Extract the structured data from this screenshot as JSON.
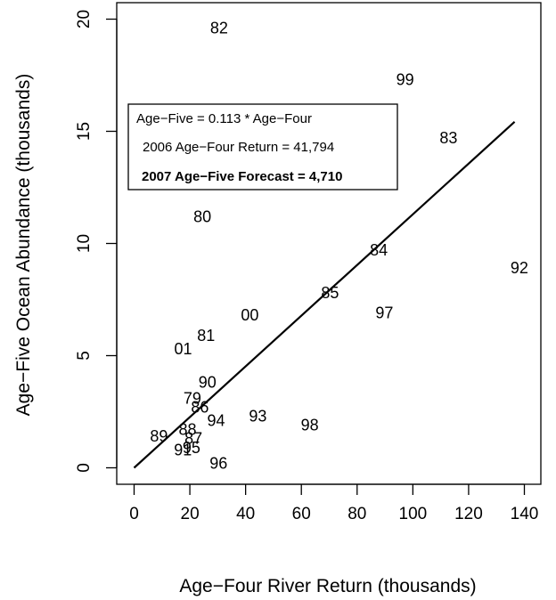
{
  "chart_data": {
    "type": "scatter",
    "xlabel": "Age−Four River Return (thousands)",
    "ylabel": "Age−Five Ocean Abundance (thousands)",
    "xlim": [
      0,
      140
    ],
    "ylim": [
      0,
      20
    ],
    "x_ticks": [
      "0",
      "20",
      "40",
      "60",
      "80",
      "100",
      "120",
      "140"
    ],
    "y_ticks": [
      "0",
      "5",
      "10",
      "15",
      "20"
    ],
    "x_tick_values": [
      0,
      20,
      40,
      60,
      80,
      100,
      120,
      140
    ],
    "y_tick_values": [
      0,
      5,
      10,
      15,
      20
    ],
    "grid": false,
    "marker": "year-label",
    "points": [
      {
        "label": "82",
        "x": 30.5,
        "y": 19.6
      },
      {
        "label": "99",
        "x": 97.2,
        "y": 17.3
      },
      {
        "label": "83",
        "x": 112.8,
        "y": 14.7
      },
      {
        "label": "80",
        "x": 24.5,
        "y": 11.2
      },
      {
        "label": "84",
        "x": 87.8,
        "y": 9.7
      },
      {
        "label": "92",
        "x": 138.2,
        "y": 8.9
      },
      {
        "label": "85",
        "x": 70.3,
        "y": 7.8
      },
      {
        "label": "00",
        "x": 41.5,
        "y": 6.8
      },
      {
        "label": "97",
        "x": 89.8,
        "y": 6.9
      },
      {
        "label": "81",
        "x": 25.8,
        "y": 5.9
      },
      {
        "label": "01",
        "x": 17.6,
        "y": 5.3
      },
      {
        "label": "90",
        "x": 26.3,
        "y": 3.8
      },
      {
        "label": "79",
        "x": 20.9,
        "y": 3.1
      },
      {
        "label": "86",
        "x": 23.6,
        "y": 2.7
      },
      {
        "label": "94",
        "x": 29.4,
        "y": 2.1
      },
      {
        "label": "93",
        "x": 44.4,
        "y": 2.3
      },
      {
        "label": "98",
        "x": 63.0,
        "y": 1.9
      },
      {
        "label": "89",
        "x": 8.9,
        "y": 1.4
      },
      {
        "label": "88",
        "x": 19.2,
        "y": 1.7
      },
      {
        "label": "87",
        "x": 21.3,
        "y": 1.3
      },
      {
        "label": "91",
        "x": 17.5,
        "y": 0.8
      },
      {
        "label": "95",
        "x": 20.6,
        "y": 0.9
      },
      {
        "label": "96",
        "x": 30.3,
        "y": 0.2
      }
    ],
    "fit_line": {
      "slope": 0.113,
      "x_start": 0,
      "x_end": 136.5
    },
    "legend": {
      "placement": "top-left",
      "lines": [
        "Age−Five = 0.113 * Age−Four",
        "2006 Age−Four Return = 41,794",
        "2007 Age−Five Forecast = 4,710"
      ],
      "bold_line_index": 2
    }
  }
}
